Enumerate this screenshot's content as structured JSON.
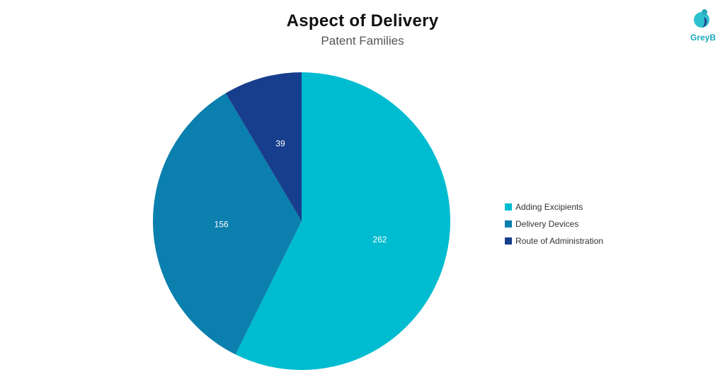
{
  "chart_data": {
    "type": "pie",
    "title": "Aspect of Delivery",
    "subtitle": "Patent Families",
    "categories": [
      "Adding Excipients",
      "Delivery Devices",
      "Route of Administration"
    ],
    "values": [
      262,
      156,
      39
    ],
    "colors": [
      "#00bcd0",
      "#0b7fad",
      "#173e8c"
    ],
    "legend_position": "right"
  },
  "branding": {
    "logo_text": "GreyB",
    "logo_icon": "greyb-logo-icon"
  }
}
